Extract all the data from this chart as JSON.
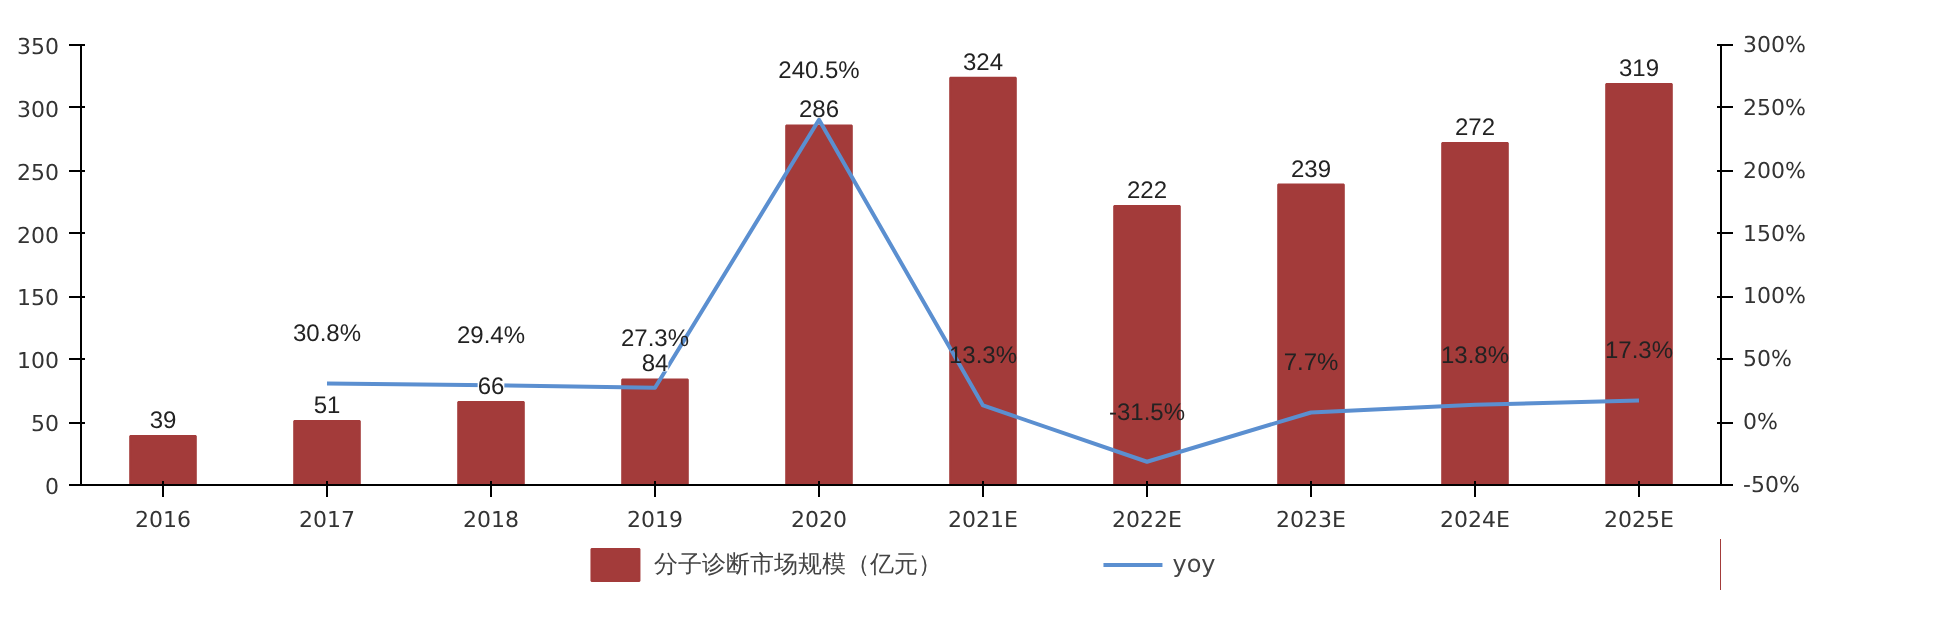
{
  "chart_data": {
    "type": "bar",
    "categories": [
      "2016",
      "2017",
      "2018",
      "2019",
      "2020",
      "2021E",
      "2022E",
      "2023E",
      "2024E",
      "2025E"
    ],
    "series": [
      {
        "name": "分子诊断市场规模（亿元）",
        "color": "#a33b3a",
        "values": [
          39,
          51,
          66,
          84,
          286,
          324,
          222,
          239,
          272,
          319
        ],
        "value_labels": [
          "39",
          "51",
          "66",
          "84",
          "286",
          "324",
          "222",
          "239",
          "272",
          "319"
        ]
      },
      {
        "name": "yoy",
        "type": "line",
        "axis": "y2",
        "color": "#5b8fd0",
        "values": [
          null,
          30.8,
          29.4,
          27.3,
          240.5,
          13.3,
          -31.5,
          7.7,
          13.8,
          17.3
        ],
        "value_labels": [
          null,
          "30.8%",
          "29.4%",
          "27.3%",
          "240.5%",
          "13.3%",
          "-31.5%",
          "7.7%",
          "13.8%",
          "17.3%"
        ]
      }
    ],
    "ylim": [
      0,
      350
    ],
    "yticks": [
      0,
      50,
      100,
      150,
      200,
      250,
      300,
      350
    ],
    "y2lim": [
      -50,
      300
    ],
    "y2ticks": [
      {
        "value": -50,
        "label": "-50%"
      },
      {
        "value": 0,
        "label": "0%"
      },
      {
        "value": 50,
        "label": "50%"
      },
      {
        "value": 100,
        "label": "100%"
      },
      {
        "value": 150,
        "label": "150%"
      },
      {
        "value": 200,
        "label": "200%"
      },
      {
        "value": 250,
        "label": "250%"
      },
      {
        "value": 300,
        "label": "300%"
      }
    ],
    "grid": false,
    "legend": "bottom",
    "marker": "none",
    "line_style": "solid"
  }
}
